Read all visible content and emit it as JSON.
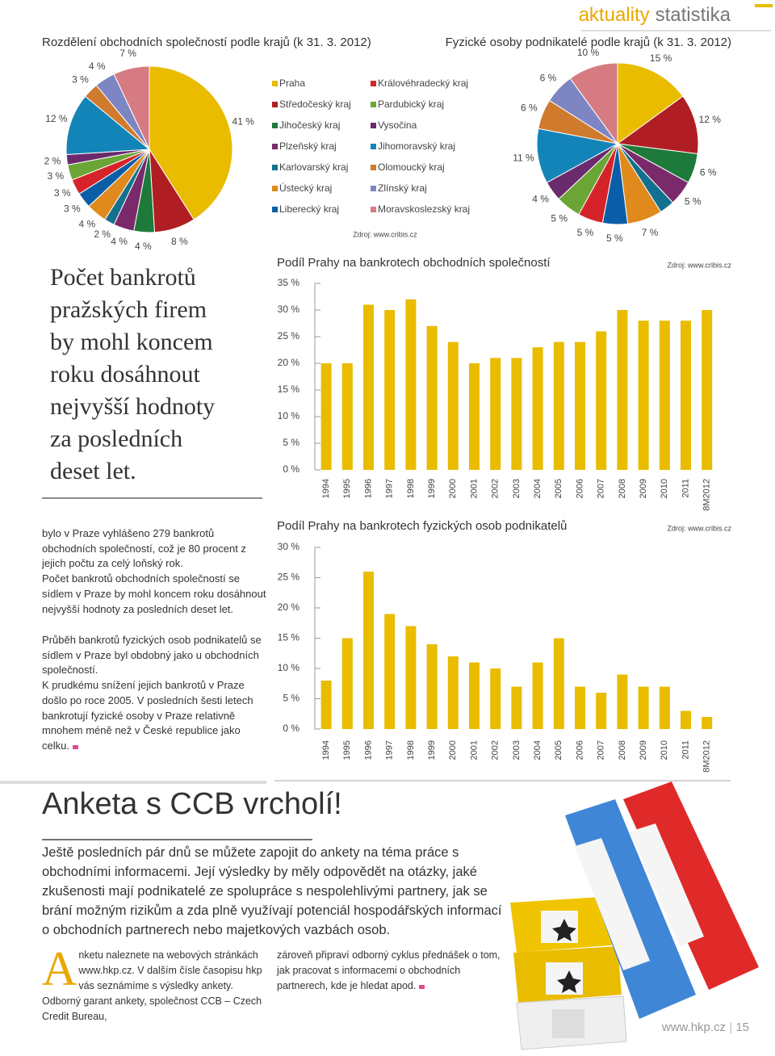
{
  "header": {
    "section": "aktuality",
    "subsection": "statistika"
  },
  "chart_data": [
    {
      "type": "pie",
      "title": "Rozdělení obchodních společností podle krajů (k 31. 3. 2012)",
      "categories": [
        "Praha",
        "Středočeský kraj",
        "Jihočeský kraj",
        "Plzeňský kraj",
        "Karlovarský kraj",
        "Ústecký kraj",
        "Liberecký kraj",
        "Královéhradecký kraj",
        "Pardubický kraj",
        "Vysočina",
        "Jihomoravský kraj",
        "Olomoucký kraj",
        "Zlínský kraj",
        "Moravskoslezský kraj"
      ],
      "colors": [
        "#e9bc00",
        "#b01e23",
        "#1d7a3a",
        "#7a2a6b",
        "#13718f",
        "#e08a1d",
        "#0a5ea8",
        "#d6232a",
        "#6aa535",
        "#6b2a6e",
        "#1384b8",
        "#d07a2e",
        "#7d86c2",
        "#d77b82"
      ],
      "values": [
        41,
        8,
        4,
        4,
        2,
        4,
        3,
        3,
        3,
        2,
        12,
        3,
        4,
        7
      ],
      "value_labels": [
        "41 %",
        "8 %",
        "4 %",
        "4 %",
        "2 %",
        "4 %",
        "3 %",
        "3 %",
        "3 %",
        "2 %",
        "12 %",
        "3 %",
        "4 %",
        "7 %"
      ],
      "legend": true,
      "source": "Zdroj: www.cribis.cz"
    },
    {
      "type": "pie",
      "title": "Fyzické osoby podnikatelé podle krajů (k 31. 3. 2012)",
      "values": [
        15,
        12,
        6,
        5,
        3,
        7,
        5,
        5,
        5,
        4,
        11,
        6,
        6,
        10
      ],
      "value_labels": [
        "15 %",
        "12 %",
        "6 %",
        "5 %",
        null,
        "7 %",
        "5 %",
        "5 %",
        "5 %",
        "4 %",
        "11 %",
        "6 %",
        "6 %",
        "10 %"
      ]
    },
    {
      "type": "bar",
      "title": "Podíl Prahy na bankrotech obchodních společností",
      "source": "Zdroj: www.cribis.cz",
      "categories": [
        "1994",
        "1995",
        "1996",
        "1997",
        "1998",
        "1999",
        "2000",
        "2001",
        "2002",
        "2003",
        "2004",
        "2005",
        "2006",
        "2007",
        "2008",
        "2009",
        "2010",
        "2011",
        "8M2012"
      ],
      "values": [
        20,
        20,
        31,
        30,
        32,
        27,
        24,
        20,
        21,
        21,
        23,
        24,
        24,
        26,
        30,
        28,
        28,
        28,
        30
      ],
      "color": "#e9bc00",
      "ylim": [
        0,
        35
      ],
      "yticks": [
        {
          "value": 0,
          "label": "0 %"
        },
        {
          "value": 5,
          "label": "5 %"
        },
        {
          "value": 10,
          "label": "10 %"
        },
        {
          "value": 15,
          "label": "15 %"
        },
        {
          "value": 20,
          "label": "20 %"
        },
        {
          "value": 25,
          "label": "25 %"
        },
        {
          "value": 30,
          "label": "30 %"
        },
        {
          "value": 35,
          "label": "35 %"
        }
      ]
    },
    {
      "type": "bar",
      "title": "Podíl Prahy na bankrotech fyzických osob podnikatelů",
      "source": "Zdroj: www.cribis.cz",
      "categories": [
        "1994",
        "1995",
        "1996",
        "1997",
        "1998",
        "1999",
        "2000",
        "2001",
        "2002",
        "2003",
        "2004",
        "2005",
        "2006",
        "2007",
        "2008",
        "2009",
        "2010",
        "2011",
        "8M2012"
      ],
      "values": [
        8,
        15,
        26,
        19,
        17,
        14,
        12,
        11,
        10,
        7,
        11,
        15,
        7,
        6,
        9,
        7,
        7,
        3,
        2
      ],
      "color": "#e9bc00",
      "ylim": [
        0,
        30
      ],
      "yticks": [
        {
          "value": 0,
          "label": "0 %"
        },
        {
          "value": 5,
          "label": "5 %"
        },
        {
          "value": 10,
          "label": "10 %"
        },
        {
          "value": 15,
          "label": "15 %"
        },
        {
          "value": 20,
          "label": "20 %"
        },
        {
          "value": 25,
          "label": "25 %"
        },
        {
          "value": 30,
          "label": "30 %"
        }
      ]
    }
  ],
  "quote": {
    "lines": [
      "Počet bankrotů",
      "pražských firem",
      "by mohl koncem",
      "roku dosáhnout",
      "nejvyšší hodnoty",
      "za posledních",
      "deset let."
    ]
  },
  "article": {
    "paragraphs": [
      "bylo v Praze vyhlášeno 279 bankrotů obchodních společností, což je 80 procent z jejich počtu za celý loňský rok.",
      "Počet bankrotů obchodních společností se sídlem v Praze by mohl koncem roku dosáhnout nejvyšší hodnoty za posledních deset let.",
      "Průběh bankrotů fyzických osob podnikatelů se sídlem v Praze byl obdobný jako u obchodních společností.",
      "K prudkému snížení jejich bankrotů v Praze došlo po roce 2005. V posledních šesti letech bankrotují fyzické osoby v Praze relativně mnohem méně než v České republice jako celku."
    ]
  },
  "anketa": {
    "title": "Anketa s CCB vrcholí!",
    "intro": "Ještě posledních pár dnů se můžete zapojit do ankety na téma práce s obchodními informacemi. Její výsledky by měly odpovědět na otázky, jaké zkušenosti mají podnikatelé ze spolupráce s nespolehlivými partnery, jak se brání možným rizikům a zda plně využívají potenciál hospodářských informací o obchodních partnerech nebo majetkových vazbách osob.",
    "dropcap": "A",
    "column1": "nketu naleznete na webových stránkách www.hkp.cz. V dalším čísle časopisu hkp vás seznámíme s výsledky ankety. Odborný garant ankety, společnost CCB – Czech Credit Bureau,",
    "column2": "zároveň připraví odborný cyklus přednášek o tom, jak pracovat s informacemi o obchodních partnerech, kde je hledat apod."
  },
  "footer": {
    "url": "www.hkp.cz",
    "page": "15"
  }
}
